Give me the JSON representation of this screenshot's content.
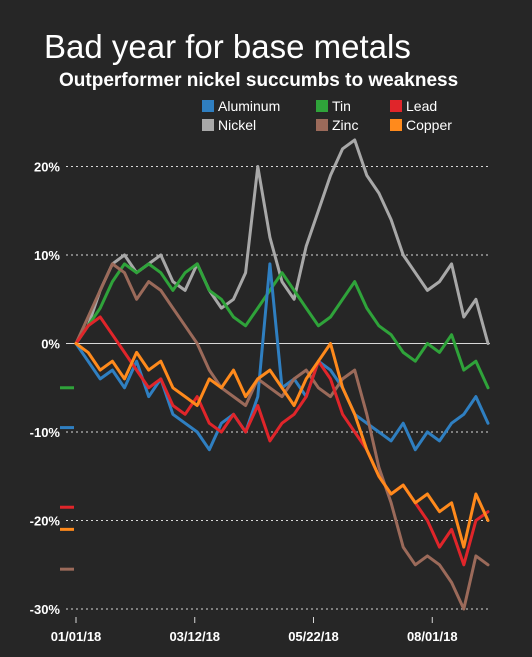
{
  "chart_data": {
    "type": "line",
    "title": "Bad year for base metals",
    "subtitle": "Outperformer nickel succumbs to weakness",
    "xlabel": "",
    "ylabel": "",
    "ylim": [
      -30,
      23
    ],
    "yticks": [
      {
        "value": 20,
        "label": "20%"
      },
      {
        "value": 10,
        "label": "10%"
      },
      {
        "value": 0,
        "label": "0%"
      },
      {
        "value": -10,
        "label": "-10%"
      },
      {
        "value": -20,
        "label": "-20%"
      },
      {
        "value": -30,
        "label": "-30%"
      }
    ],
    "xticks": [
      {
        "value": 0,
        "label": "01/01/18"
      },
      {
        "value": 49,
        "label": "03/12/18"
      },
      {
        "value": 98,
        "label": "05/22/18"
      },
      {
        "value": 147,
        "label": "08/01/18"
      }
    ],
    "xlim": [
      0,
      170
    ],
    "grid": true,
    "legend": {
      "position": "top-right"
    },
    "series": [
      {
        "name": "Aluminum",
        "color": "#2f7fc1",
        "x": [
          0,
          5,
          10,
          15,
          20,
          25,
          30,
          35,
          40,
          45,
          50,
          55,
          60,
          65,
          70,
          75,
          80,
          85,
          90,
          95,
          100,
          105,
          110,
          115,
          120,
          125,
          130,
          135,
          140,
          145,
          150,
          155,
          160,
          165,
          170
        ],
        "values": [
          0,
          -2,
          -4,
          -3,
          -5,
          -2,
          -6,
          -4,
          -8,
          -9,
          -10,
          -12,
          -9,
          -8,
          -10,
          -6,
          9,
          -5,
          -4,
          -6,
          -2,
          -3,
          -5,
          -8,
          -9,
          -10,
          -11,
          -9,
          -12,
          -10,
          -11,
          -9,
          -8,
          -6,
          -9
        ]
      },
      {
        "name": "Nickel",
        "color": "#a8a8a8",
        "x": [
          0,
          5,
          10,
          15,
          20,
          25,
          30,
          35,
          40,
          45,
          50,
          55,
          60,
          65,
          70,
          75,
          80,
          85,
          90,
          95,
          100,
          105,
          110,
          115,
          120,
          125,
          130,
          135,
          140,
          145,
          150,
          155,
          160,
          165,
          170
        ],
        "values": [
          0,
          2,
          6,
          9,
          10,
          8,
          9,
          10,
          7,
          6,
          9,
          6,
          4,
          5,
          8,
          20,
          12,
          7,
          5,
          11,
          15,
          19,
          22,
          23,
          19,
          17,
          14,
          10,
          8,
          6,
          7,
          9,
          3,
          5,
          0
        ]
      },
      {
        "name": "Tin",
        "color": "#2fa33a",
        "x": [
          0,
          5,
          10,
          15,
          20,
          25,
          30,
          35,
          40,
          45,
          50,
          55,
          60,
          65,
          70,
          75,
          80,
          85,
          90,
          95,
          100,
          105,
          110,
          115,
          120,
          125,
          130,
          135,
          140,
          145,
          150,
          155,
          160,
          165,
          170
        ],
        "values": [
          0,
          2,
          4,
          7,
          9,
          8,
          9,
          8,
          6,
          8,
          9,
          6,
          5,
          3,
          2,
          4,
          6,
          8,
          6,
          4,
          2,
          3,
          5,
          7,
          4,
          2,
          1,
          -1,
          -2,
          0,
          -1,
          1,
          -3,
          -2,
          -5
        ]
      },
      {
        "name": "Zinc",
        "color": "#9b6a5a",
        "x": [
          0,
          5,
          10,
          15,
          20,
          25,
          30,
          35,
          40,
          45,
          50,
          55,
          60,
          65,
          70,
          75,
          80,
          85,
          90,
          95,
          100,
          105,
          110,
          115,
          120,
          125,
          130,
          135,
          140,
          145,
          150,
          155,
          160,
          165,
          170
        ],
        "values": [
          0,
          3,
          6,
          9,
          8,
          5,
          7,
          6,
          4,
          2,
          0,
          -3,
          -5,
          -6,
          -7,
          -4,
          -5,
          -6,
          -4,
          -3,
          -5,
          -6,
          -4,
          -3,
          -8,
          -14,
          -18,
          -23,
          -25,
          -24,
          -25,
          -27,
          -30,
          -24,
          -25
        ]
      },
      {
        "name": "Lead",
        "color": "#e0252a",
        "x": [
          0,
          5,
          10,
          15,
          20,
          25,
          30,
          35,
          40,
          45,
          50,
          55,
          60,
          65,
          70,
          75,
          80,
          85,
          90,
          95,
          100,
          105,
          110,
          115,
          120,
          125,
          130,
          135,
          140,
          145,
          150,
          155,
          160,
          165,
          170
        ],
        "values": [
          0,
          2,
          3,
          1,
          -1,
          -3,
          -5,
          -4,
          -7,
          -8,
          -6,
          -9,
          -10,
          -8,
          -10,
          -7,
          -11,
          -9,
          -8,
          -6,
          -2,
          -4,
          -8,
          -10,
          -12,
          -15,
          -17,
          -16,
          -18,
          -20,
          -23,
          -21,
          -25,
          -20,
          -19
        ]
      },
      {
        "name": "Copper",
        "color": "#ff8a1c",
        "x": [
          0,
          5,
          10,
          15,
          20,
          25,
          30,
          35,
          40,
          45,
          50,
          55,
          60,
          65,
          70,
          75,
          80,
          85,
          90,
          95,
          100,
          105,
          110,
          115,
          120,
          125,
          130,
          135,
          140,
          145,
          150,
          155,
          160,
          165,
          170
        ],
        "values": [
          0,
          -1,
          -3,
          -2,
          -4,
          -1,
          -3,
          -2,
          -5,
          -6,
          -7,
          -4,
          -5,
          -3,
          -6,
          -4,
          -3,
          -5,
          -7,
          -4,
          -2,
          0,
          -5,
          -8,
          -12,
          -15,
          -17,
          -16,
          -18,
          -17,
          -19,
          -18,
          -23,
          -17,
          -20
        ]
      }
    ],
    "end_markers": [
      {
        "series": "Tin",
        "value": -5
      },
      {
        "series": "Aluminum",
        "value": -9.5
      },
      {
        "series": "Lead",
        "value": -18.5
      },
      {
        "series": "Copper",
        "value": -21
      },
      {
        "series": "Zinc",
        "value": -25.5
      }
    ]
  }
}
